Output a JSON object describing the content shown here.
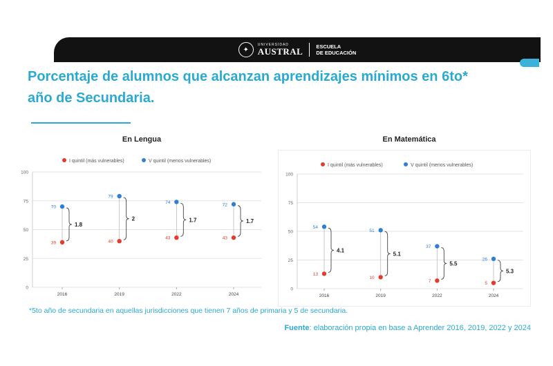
{
  "header": {
    "logo_small": "UNIVERSIDAD",
    "logo_main": "AUSTRAL",
    "school_line1": "ESCUELA",
    "school_line2": "DE EDUCACIÓN"
  },
  "title_line1": "Porcentaje de alumnos que alcanzan aprendizajes mínimos en 6to*",
  "title_line2": "año de Secundaria.",
  "colors": {
    "accent": "#2aa9d2",
    "q1": "#e53b2c",
    "q5": "#2f7fd6"
  },
  "footnote": "*5to año de secundaria en aquellas jurisdicciones que tienen 7 años de primaria y 5 de secundaria.",
  "source_label": "Fuente",
  "source_text": ": elaboración propia en base a Aprender 2016, 2019, 2022 y 2024",
  "chart_data": [
    {
      "type": "scatter",
      "title": "En Lengua",
      "categories": [
        "2016",
        "2019",
        "2022",
        "2024"
      ],
      "ylim": [
        0,
        100
      ],
      "yticks": [
        "0",
        "25",
        "50",
        "75",
        "100"
      ],
      "grid": true,
      "legend": "top",
      "series": [
        {
          "name": "I quintil (más vulnerables)",
          "values": [
            39,
            40,
            43,
            43
          ],
          "labels": [
            "39",
            "40",
            "43",
            "43"
          ],
          "color": "#e53b2c"
        },
        {
          "name": "V quintil (menos vulnerables)",
          "values": [
            70,
            79,
            74,
            72
          ],
          "labels": [
            "70",
            "79",
            "74",
            "72"
          ],
          "color": "#2f7fd6"
        }
      ],
      "ratios": [
        "1.8",
        "2",
        "1.7",
        "1.7"
      ]
    },
    {
      "type": "scatter",
      "title": "En Matemática",
      "categories": [
        "2016",
        "2019",
        "2022",
        "2024"
      ],
      "ylim": [
        0,
        100
      ],
      "yticks": [
        "0",
        "25",
        "50",
        "75",
        "100"
      ],
      "grid": true,
      "legend": "top",
      "series": [
        {
          "name": "I quintil (más vulnerables)",
          "values": [
            13,
            10,
            7,
            5
          ],
          "labels": [
            "13",
            "10",
            "7",
            "5"
          ],
          "color": "#e53b2c"
        },
        {
          "name": "V quintil (menos vulnerables)",
          "values": [
            54,
            51,
            37,
            26
          ],
          "labels": [
            "54",
            "51",
            "37",
            "26"
          ],
          "color": "#2f7fd6"
        }
      ],
      "ratios": [
        "4.1",
        "5.1",
        "5.5",
        "5.3"
      ]
    }
  ]
}
